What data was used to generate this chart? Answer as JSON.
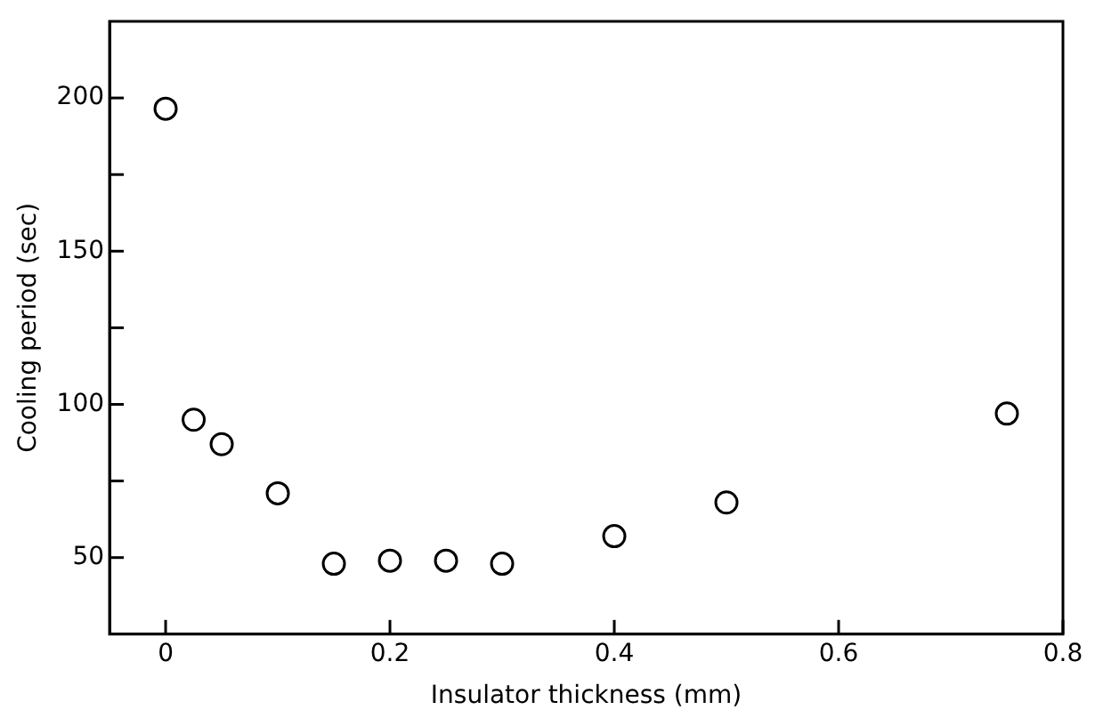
{
  "chart_data": {
    "type": "scatter",
    "xlabel": "Insulator thickness (mm)",
    "ylabel": "Cooling period (sec)",
    "x": [
      0,
      0.025,
      0.05,
      0.1,
      0.15,
      0.2,
      0.25,
      0.3,
      0.4,
      0.5,
      0.75
    ],
    "values": [
      196.5,
      95,
      87,
      71,
      48,
      49,
      49,
      48,
      57,
      68,
      97
    ],
    "color": "#000000",
    "marker": "circle",
    "xlim": [
      -0.05,
      0.8
    ],
    "xticks": [
      0,
      0.2,
      0.4,
      0.6,
      0.8
    ],
    "ylim": [
      25,
      225
    ],
    "yticks": [
      50,
      {
        "value": 75,
        "label": null
      },
      100,
      {
        "value": 125,
        "label": null
      },
      150,
      {
        "value": 175,
        "label": null
      },
      200
    ],
    "grid": false,
    "legend": false
  }
}
